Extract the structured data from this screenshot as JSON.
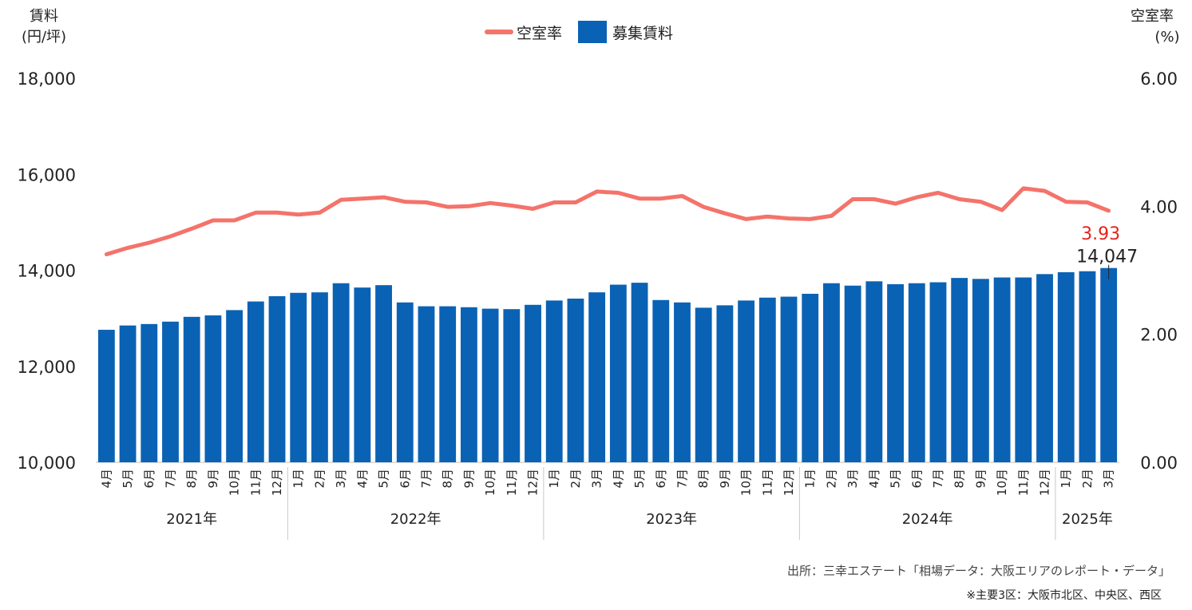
{
  "chart_data": {
    "type": "bar",
    "left_axis": {
      "title_line1": "賃料",
      "title_line2": "(円/坪)",
      "ticks": [
        "10,000",
        "12,000",
        "14,000",
        "16,000",
        "18,000"
      ],
      "range": [
        10000,
        18000
      ]
    },
    "right_axis": {
      "title_line1": "空室率",
      "title_line2": "(%)",
      "ticks": [
        "0.00",
        "2.00",
        "4.00",
        "6.00"
      ],
      "range": [
        0,
        6
      ]
    },
    "legend": [
      {
        "name": "空室率",
        "kind": "line",
        "color": "#F4736A"
      },
      {
        "name": "募集賃料",
        "kind": "bar",
        "color": "#0A62B5"
      }
    ],
    "categories": [
      "4月",
      "5月",
      "6月",
      "7月",
      "8月",
      "9月",
      "10月",
      "11月",
      "12月",
      "1月",
      "2月",
      "3月",
      "4月",
      "5月",
      "6月",
      "7月",
      "8月",
      "9月",
      "10月",
      "11月",
      "12月",
      "1月",
      "2月",
      "3月",
      "4月",
      "5月",
      "6月",
      "7月",
      "8月",
      "9月",
      "10月",
      "11月",
      "12月",
      "1月",
      "2月",
      "3月",
      "4月",
      "5月",
      "6月",
      "7月",
      "8月",
      "9月",
      "10月",
      "11月",
      "12月",
      "1月",
      "2月",
      "3月"
    ],
    "year_groups": [
      {
        "label": "2021年",
        "count": 9
      },
      {
        "label": "2022年",
        "count": 12
      },
      {
        "label": "2023年",
        "count": 12
      },
      {
        "label": "2024年",
        "count": 12
      },
      {
        "label": "2025年",
        "count": 3
      }
    ],
    "series": [
      {
        "name": "募集賃料",
        "type": "bar",
        "color": "#0A62B5",
        "values": [
          12760,
          12850,
          12880,
          12930,
          13030,
          13060,
          13170,
          13350,
          13460,
          13530,
          13540,
          13730,
          13640,
          13690,
          13330,
          13250,
          13250,
          13230,
          13200,
          13190,
          13280,
          13370,
          13410,
          13540,
          13700,
          13740,
          13380,
          13330,
          13220,
          13270,
          13370,
          13430,
          13450,
          13510,
          13730,
          13680,
          13770,
          13710,
          13730,
          13750,
          13840,
          13820,
          13850,
          13850,
          13920,
          13960,
          13980,
          14047
        ]
      },
      {
        "name": "空室率",
        "type": "line",
        "color": "#F4736A",
        "values": [
          3.25,
          3.35,
          3.43,
          3.53,
          3.65,
          3.78,
          3.78,
          3.9,
          3.9,
          3.87,
          3.9,
          4.1,
          4.12,
          4.14,
          4.07,
          4.06,
          3.99,
          4.0,
          4.05,
          4.01,
          3.96,
          4.06,
          4.06,
          4.23,
          4.21,
          4.12,
          4.12,
          4.16,
          3.99,
          3.89,
          3.8,
          3.84,
          3.81,
          3.8,
          3.85,
          4.11,
          4.11,
          4.04,
          4.14,
          4.21,
          4.11,
          4.07,
          3.94,
          4.28,
          4.24,
          4.07,
          4.06,
          3.93
        ]
      }
    ],
    "annotations": {
      "last_vacancy": {
        "text": "3.93",
        "color": "#E8221A"
      },
      "last_rent": {
        "text": "14,047"
      }
    },
    "source_note": "出所：三幸エステート「相場データ：大阪エリアのレポート・データ」",
    "area_note": "※主要3区：大阪市北区、中央区、西区"
  }
}
